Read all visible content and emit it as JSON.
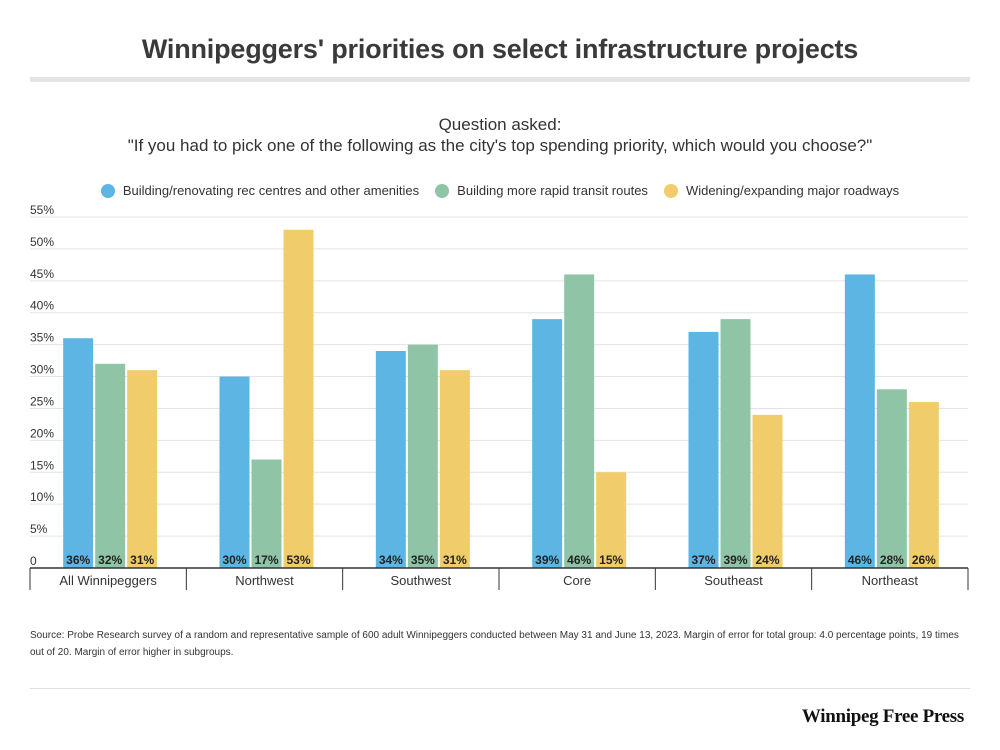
{
  "title": "Winnipeggers' priorities on select infrastructure projects",
  "question_label": "Question asked:",
  "question_text": "\"If you had to pick one of the following as the city's top spending priority, which would you choose?\"",
  "source": "Source: Probe Research survey of a random and representative sample of 600 adult Winnipeggers conducted between May 31 and June 13, 2023. Margin of error for total group: 4.0 percentage points, 19 times out of 20. Margin of error higher in subgroups.",
  "brand": "Winnipeg Free Press",
  "chart_data": {
    "type": "bar",
    "categories": [
      "All Winnipeggers",
      "Northwest",
      "Southwest",
      "Core",
      "Southeast",
      "Northeast"
    ],
    "series": [
      {
        "name": "Building/renovating rec centres and other amenities",
        "color": "#5db5e3",
        "values": [
          36,
          30,
          34,
          39,
          37,
          46
        ]
      },
      {
        "name": "Building more rapid transit routes",
        "color": "#8fc4a6",
        "values": [
          32,
          17,
          35,
          46,
          39,
          28
        ]
      },
      {
        "name": "Widening/expanding major roadways",
        "color": "#f0cd6a",
        "values": [
          31,
          53,
          31,
          15,
          24,
          26
        ]
      }
    ],
    "y_ticks": [
      "0",
      "5%",
      "10%",
      "15%",
      "20%",
      "25%",
      "30%",
      "35%",
      "40%",
      "45%",
      "50%",
      "55%"
    ],
    "ylim": [
      0,
      55
    ],
    "grid": true,
    "legend_position": "top"
  }
}
